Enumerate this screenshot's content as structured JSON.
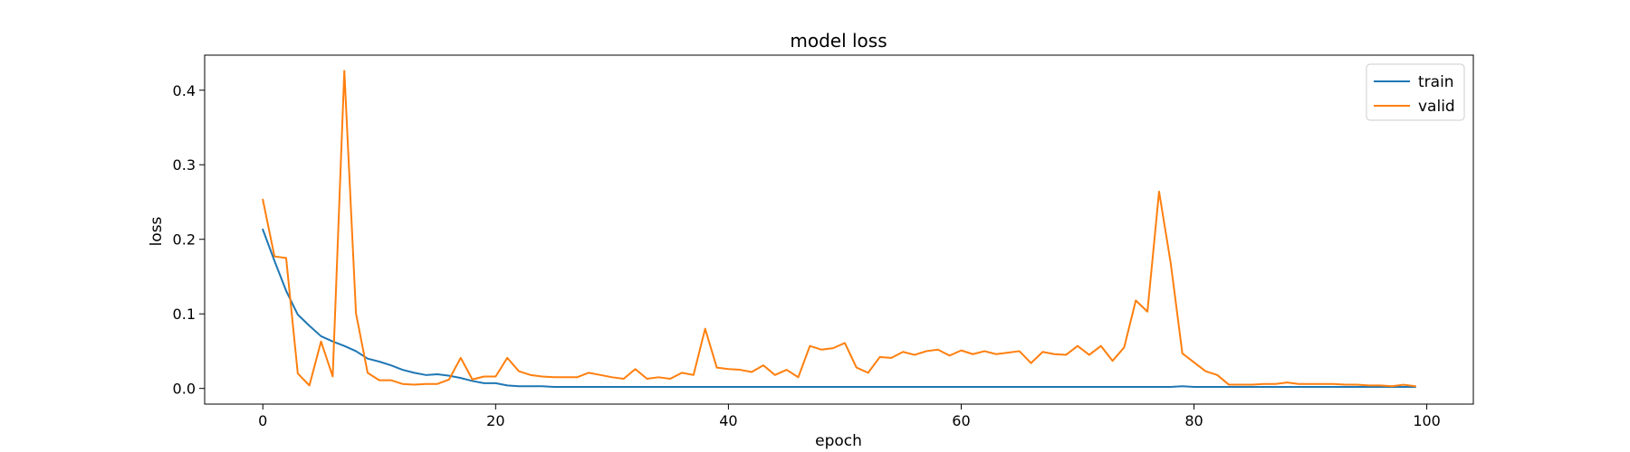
{
  "chart_data": {
    "type": "line",
    "title": "model loss",
    "xlabel": "epoch",
    "ylabel": "loss",
    "xlim": [
      -5,
      104
    ],
    "ylim": [
      -0.021,
      0.447
    ],
    "xticks": [
      0,
      20,
      40,
      60,
      80,
      100
    ],
    "yticks": [
      0.0,
      0.1,
      0.2,
      0.3,
      0.4
    ],
    "xtick_labels": [
      "0",
      "20",
      "40",
      "60",
      "80",
      "100"
    ],
    "ytick_labels": [
      "0.0",
      "0.1",
      "0.2",
      "0.3",
      "0.4"
    ],
    "legend_position": "top-right",
    "series": [
      {
        "name": "train",
        "color": "#1f77b4",
        "values": [
          0.213,
          0.171,
          0.131,
          0.099,
          0.084,
          0.07,
          0.063,
          0.057,
          0.05,
          0.04,
          0.036,
          0.031,
          0.025,
          0.021,
          0.018,
          0.019,
          0.017,
          0.014,
          0.01,
          0.007,
          0.007,
          0.004,
          0.003,
          0.003,
          0.003,
          0.002,
          0.002,
          0.002,
          0.002,
          0.002,
          0.002,
          0.002,
          0.002,
          0.002,
          0.002,
          0.002,
          0.002,
          0.002,
          0.002,
          0.002,
          0.002,
          0.002,
          0.002,
          0.002,
          0.002,
          0.002,
          0.002,
          0.002,
          0.002,
          0.002,
          0.002,
          0.002,
          0.002,
          0.002,
          0.002,
          0.002,
          0.002,
          0.002,
          0.002,
          0.002,
          0.002,
          0.002,
          0.002,
          0.002,
          0.002,
          0.002,
          0.002,
          0.002,
          0.002,
          0.002,
          0.002,
          0.002,
          0.002,
          0.002,
          0.002,
          0.002,
          0.002,
          0.002,
          0.002,
          0.003,
          0.002,
          0.002,
          0.002,
          0.002,
          0.002,
          0.002,
          0.002,
          0.002,
          0.002,
          0.002,
          0.002,
          0.002,
          0.002,
          0.002,
          0.002,
          0.002,
          0.002,
          0.002,
          0.002,
          0.002
        ]
      },
      {
        "name": "valid",
        "color": "#ff7f0e",
        "values": [
          0.253,
          0.177,
          0.175,
          0.02,
          0.004,
          0.063,
          0.016,
          0.426,
          0.101,
          0.021,
          0.011,
          0.011,
          0.006,
          0.005,
          0.006,
          0.006,
          0.012,
          0.041,
          0.012,
          0.016,
          0.016,
          0.041,
          0.023,
          0.018,
          0.016,
          0.015,
          0.015,
          0.015,
          0.021,
          0.018,
          0.015,
          0.013,
          0.026,
          0.013,
          0.015,
          0.013,
          0.021,
          0.018,
          0.08,
          0.028,
          0.026,
          0.025,
          0.022,
          0.031,
          0.018,
          0.025,
          0.015,
          0.057,
          0.052,
          0.054,
          0.061,
          0.028,
          0.021,
          0.042,
          0.041,
          0.049,
          0.045,
          0.05,
          0.052,
          0.044,
          0.051,
          0.046,
          0.05,
          0.046,
          0.048,
          0.05,
          0.034,
          0.049,
          0.046,
          0.045,
          0.057,
          0.045,
          0.057,
          0.037,
          0.055,
          0.118,
          0.103,
          0.264,
          0.168,
          0.047,
          0.035,
          0.023,
          0.018,
          0.005,
          0.005,
          0.005,
          0.006,
          0.006,
          0.008,
          0.006,
          0.006,
          0.006,
          0.006,
          0.005,
          0.005,
          0.004,
          0.004,
          0.003,
          0.005,
          0.003
        ]
      }
    ]
  }
}
